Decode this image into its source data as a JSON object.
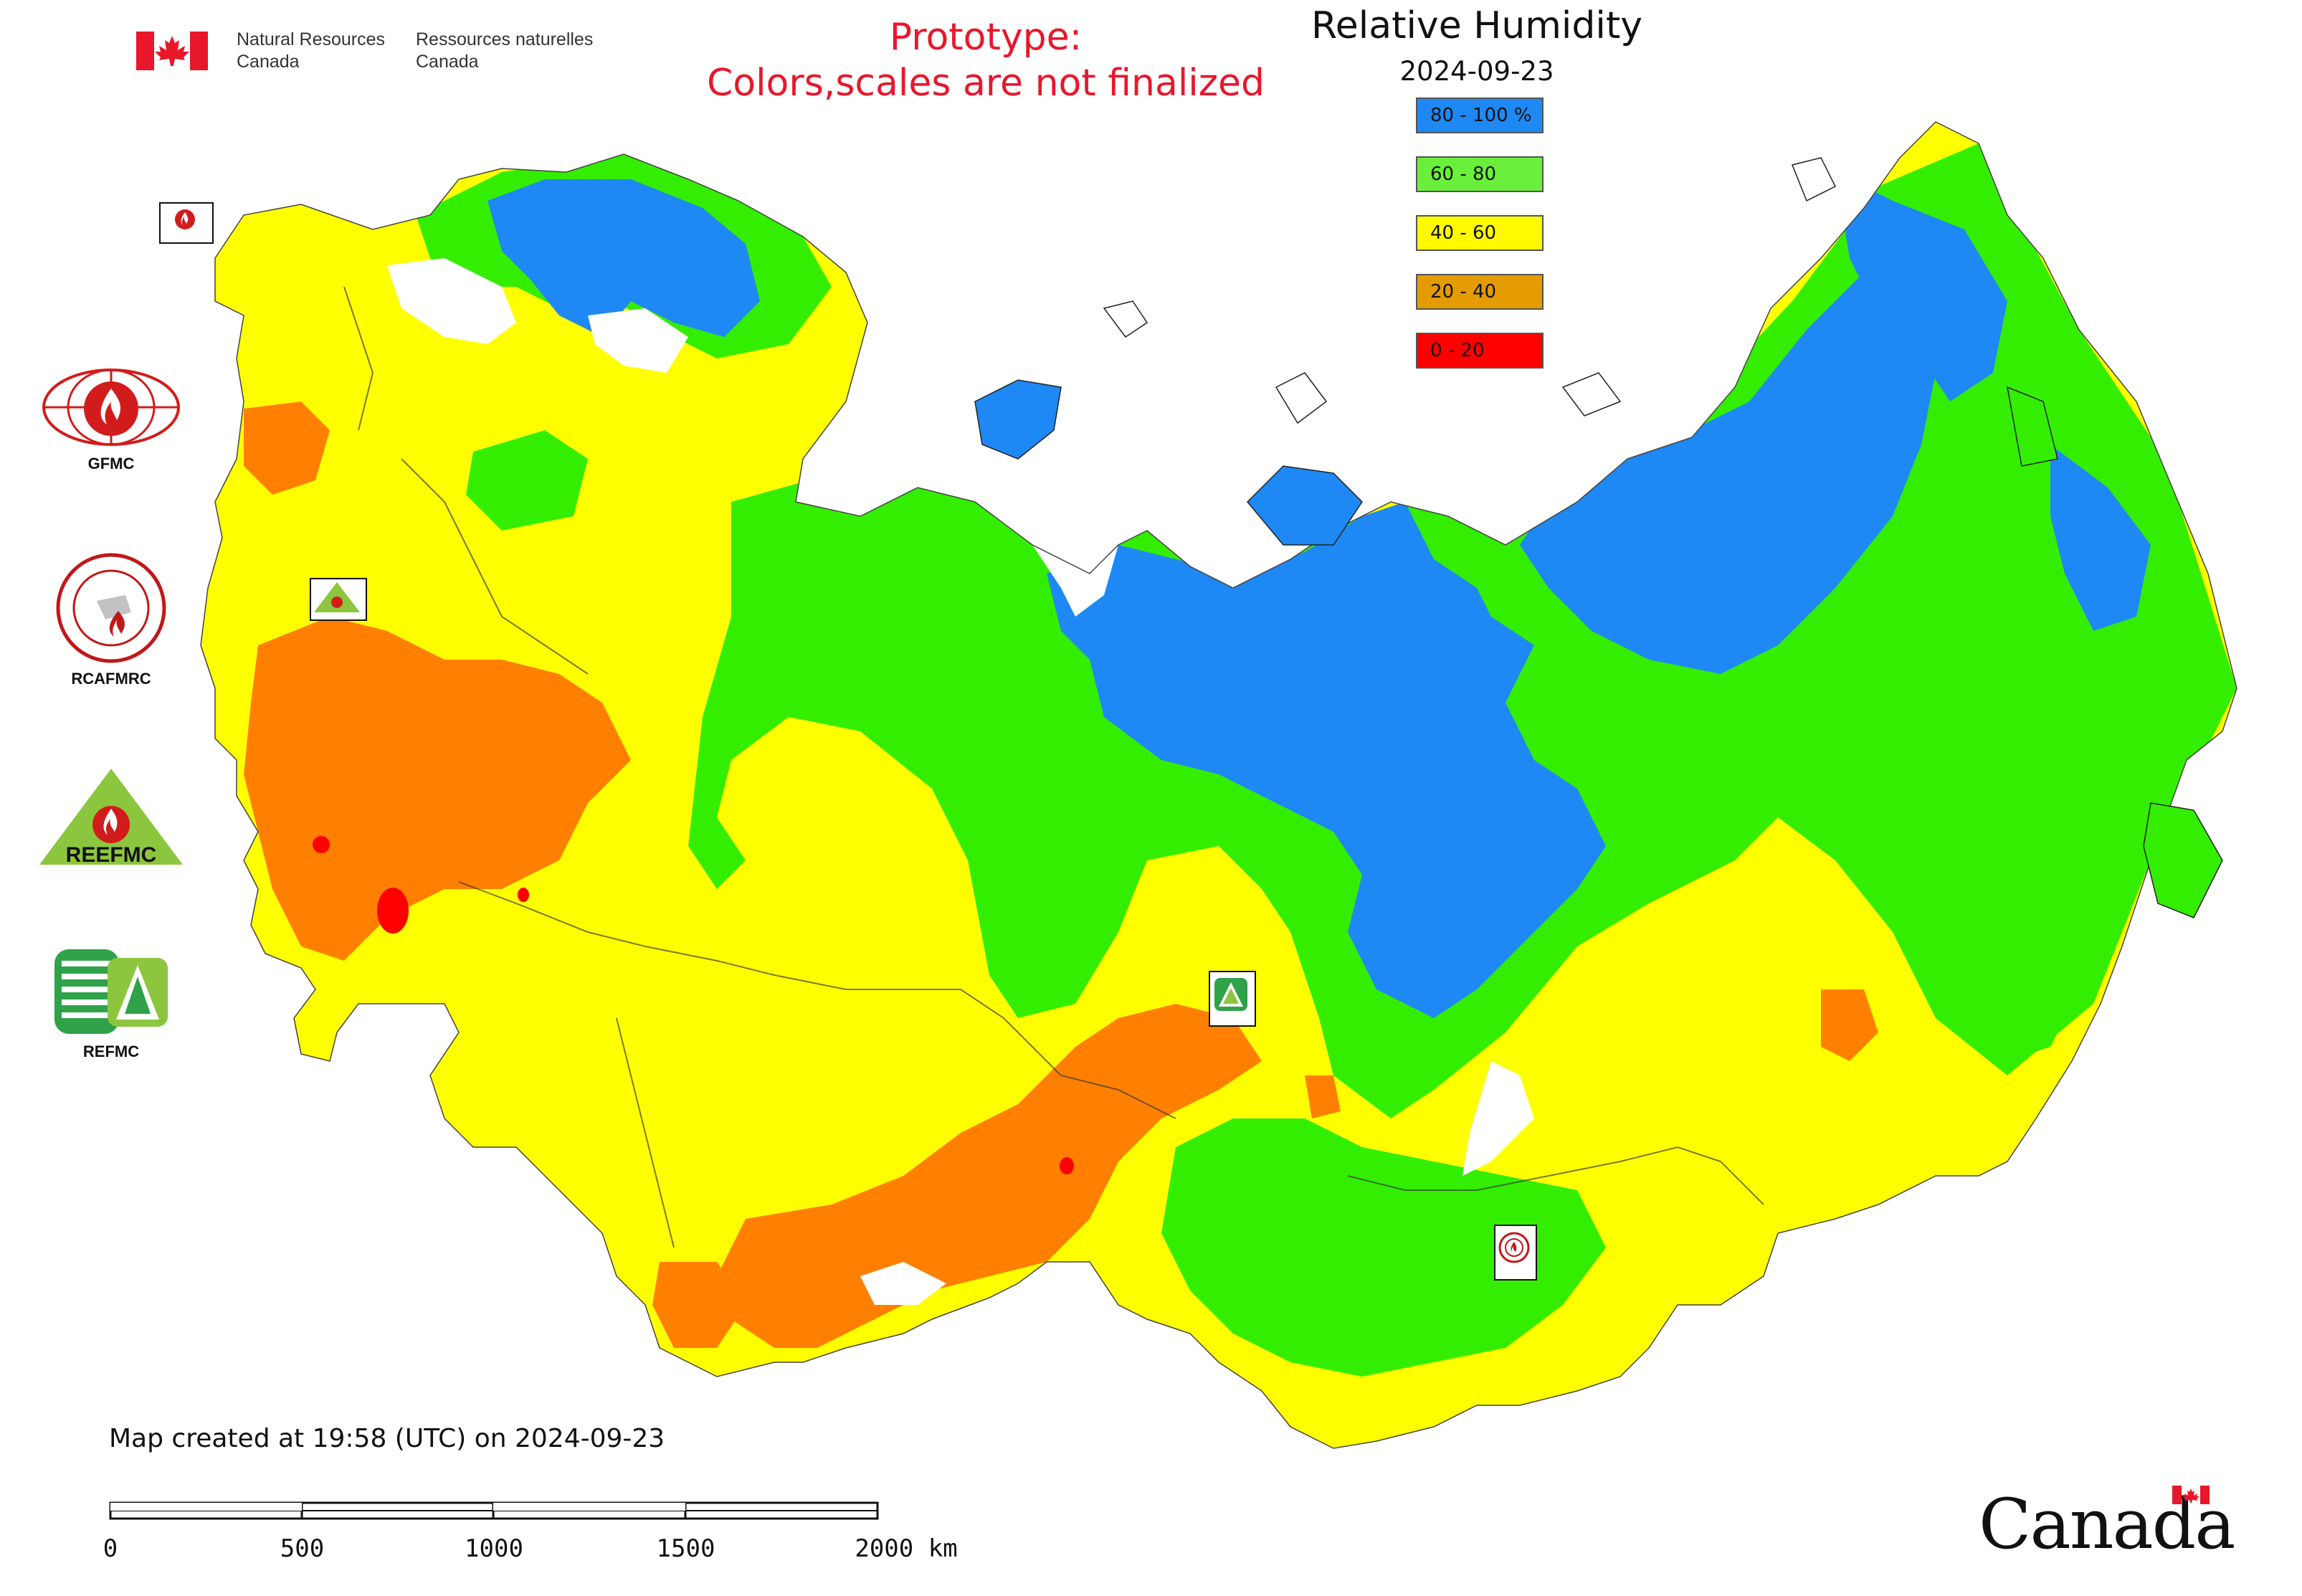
{
  "header": {
    "dept_en_line1": "Natural Resources",
    "dept_en_line2": "Canada",
    "dept_fr_line1": "Ressources naturelles",
    "dept_fr_line2": "Canada",
    "prototype_line1": "Prototype:",
    "prototype_line2": "Colors,scales are not finalized",
    "prototype_color": "#e8172b"
  },
  "map": {
    "title": "Relative Humidity",
    "date": "2024-09-23",
    "legend": [
      {
        "label": "80 - 100 %",
        "color": "#1e88f5"
      },
      {
        "label": "60 - 80",
        "color": "#6af03a"
      },
      {
        "label": "40 - 60",
        "color": "#fffa00"
      },
      {
        "label": "20 - 40",
        "color": "#e39b00"
      },
      {
        "label": "0 - 20",
        "color": "#ff0000"
      }
    ],
    "field_colors": {
      "humid_80_100": "#1e88f5",
      "humid_60_80": "#33ee00",
      "humid_40_60": "#ffff00",
      "humid_20_40": "#ff8000",
      "humid_0_20": "#ff0000"
    },
    "markers": [
      {
        "name": "GFMC",
        "icon": "gfmc-fire-logo-icon"
      },
      {
        "name": "REEFMC",
        "icon": "reefmc-triangle-logo-icon"
      },
      {
        "name": "REFMC",
        "icon": "refmc-triangle-logo-icon"
      },
      {
        "name": "RCAFMRC",
        "icon": "rcafmrc-circle-logo-icon"
      }
    ]
  },
  "partners": [
    {
      "label": "GFMC",
      "icon": "gfmc-logo-icon"
    },
    {
      "label": "RCAFMRC",
      "icon": "rcafmrc-logo-icon"
    },
    {
      "label": "",
      "icon": "reefmc-logo-icon",
      "logo_text": "REEFMC"
    },
    {
      "label": "REFMC",
      "icon": "refmc-logo-icon"
    }
  ],
  "footer": {
    "created": "Map created at 19:58 (UTC) on 2024-09-23",
    "scale_labels": [
      "0",
      "500",
      "1000",
      "1500",
      "2000 km"
    ],
    "wordmark": "Canada"
  }
}
